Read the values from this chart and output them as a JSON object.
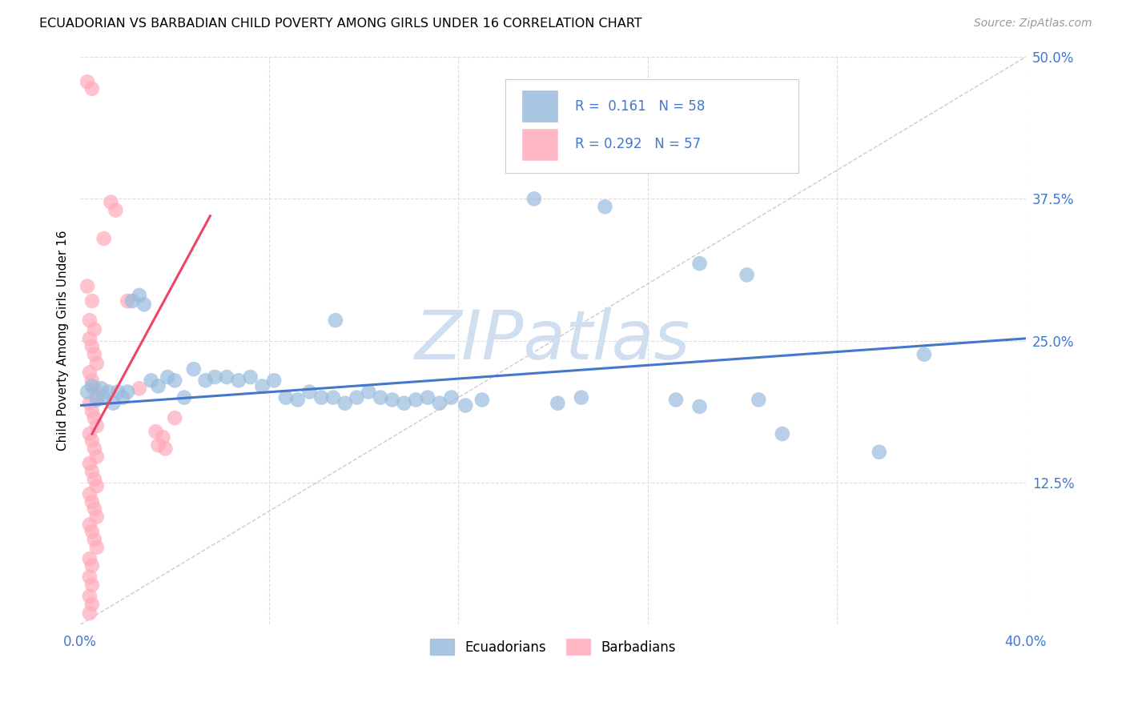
{
  "title": "ECUADORIAN VS BARBADIAN CHILD POVERTY AMONG GIRLS UNDER 16 CORRELATION CHART",
  "source": "Source: ZipAtlas.com",
  "ylabel": "Child Poverty Among Girls Under 16",
  "xlim": [
    0.0,
    0.4
  ],
  "ylim": [
    0.0,
    0.5
  ],
  "blue_color": "#99BBDD",
  "blue_edge_color": "#99BBDD",
  "pink_color": "#FFAABB",
  "pink_edge_color": "#FFAABB",
  "blue_line_color": "#4477CC",
  "pink_line_color": "#EE4466",
  "ref_line_color": "#CCCCCC",
  "grid_color": "#DDDDDD",
  "tick_label_color": "#4477CC",
  "watermark_text": "ZIPatlas",
  "watermark_color": "#D0DFF0",
  "blue_pts": [
    [
      0.003,
      0.205
    ],
    [
      0.005,
      0.215
    ],
    [
      0.007,
      0.2
    ],
    [
      0.009,
      0.21
    ],
    [
      0.01,
      0.195
    ],
    [
      0.012,
      0.21
    ],
    [
      0.014,
      0.198
    ],
    [
      0.016,
      0.205
    ],
    [
      0.018,
      0.2
    ],
    [
      0.02,
      0.21
    ],
    [
      0.022,
      0.285
    ],
    [
      0.025,
      0.29
    ],
    [
      0.027,
      0.285
    ],
    [
      0.03,
      0.215
    ],
    [
      0.033,
      0.21
    ],
    [
      0.036,
      0.22
    ],
    [
      0.04,
      0.215
    ],
    [
      0.043,
      0.2
    ],
    [
      0.048,
      0.225
    ],
    [
      0.052,
      0.21
    ],
    [
      0.055,
      0.22
    ],
    [
      0.06,
      0.22
    ],
    [
      0.065,
      0.215
    ],
    [
      0.07,
      0.22
    ],
    [
      0.075,
      0.21
    ],
    [
      0.08,
      0.215
    ],
    [
      0.085,
      0.2
    ],
    [
      0.09,
      0.195
    ],
    [
      0.095,
      0.205
    ],
    [
      0.1,
      0.2
    ],
    [
      0.105,
      0.2
    ],
    [
      0.11,
      0.195
    ],
    [
      0.115,
      0.2
    ],
    [
      0.12,
      0.205
    ],
    [
      0.125,
      0.2
    ],
    [
      0.13,
      0.2
    ],
    [
      0.135,
      0.195
    ],
    [
      0.14,
      0.198
    ],
    [
      0.145,
      0.2
    ],
    [
      0.105,
      0.27
    ],
    [
      0.15,
      0.195
    ],
    [
      0.155,
      0.2
    ],
    [
      0.162,
      0.195
    ],
    [
      0.17,
      0.2
    ],
    [
      0.19,
      0.375
    ],
    [
      0.2,
      0.195
    ],
    [
      0.21,
      0.2
    ],
    [
      0.22,
      0.37
    ],
    [
      0.25,
      0.2
    ],
    [
      0.26,
      0.195
    ],
    [
      0.285,
      0.2
    ],
    [
      0.295,
      0.17
    ],
    [
      0.335,
      0.155
    ],
    [
      0.355,
      0.24
    ],
    [
      0.26,
      0.32
    ],
    [
      0.28,
      0.31
    ]
  ],
  "pink_pts": [
    [
      0.003,
      0.48
    ],
    [
      0.005,
      0.475
    ],
    [
      0.01,
      0.342
    ],
    [
      0.013,
      0.37
    ],
    [
      0.015,
      0.36
    ],
    [
      0.003,
      0.3
    ],
    [
      0.004,
      0.29
    ],
    [
      0.005,
      0.28
    ],
    [
      0.006,
      0.275
    ],
    [
      0.007,
      0.268
    ],
    [
      0.008,
      0.26
    ],
    [
      0.003,
      0.252
    ],
    [
      0.004,
      0.245
    ],
    [
      0.005,
      0.238
    ],
    [
      0.006,
      0.232
    ],
    [
      0.007,
      0.225
    ],
    [
      0.008,
      0.218
    ],
    [
      0.002,
      0.212
    ],
    [
      0.003,
      0.205
    ],
    [
      0.004,
      0.198
    ],
    [
      0.005,
      0.193
    ],
    [
      0.006,
      0.188
    ],
    [
      0.007,
      0.182
    ],
    [
      0.003,
      0.175
    ],
    [
      0.004,
      0.168
    ],
    [
      0.005,
      0.162
    ],
    [
      0.006,
      0.155
    ],
    [
      0.007,
      0.148
    ],
    [
      0.008,
      0.142
    ],
    [
      0.003,
      0.135
    ],
    [
      0.004,
      0.128
    ],
    [
      0.005,
      0.122
    ],
    [
      0.006,
      0.115
    ],
    [
      0.007,
      0.108
    ],
    [
      0.008,
      0.102
    ],
    [
      0.003,
      0.095
    ],
    [
      0.004,
      0.088
    ],
    [
      0.005,
      0.082
    ],
    [
      0.006,
      0.075
    ],
    [
      0.003,
      0.068
    ],
    [
      0.004,
      0.062
    ],
    [
      0.003,
      0.055
    ],
    [
      0.004,
      0.048
    ],
    [
      0.003,
      0.038
    ],
    [
      0.004,
      0.032
    ],
    [
      0.003,
      0.025
    ],
    [
      0.004,
      0.018
    ],
    [
      0.003,
      0.012
    ],
    [
      0.004,
      0.008
    ],
    [
      0.003,
      0.062
    ],
    [
      0.004,
      0.058
    ],
    [
      0.02,
      0.285
    ],
    [
      0.025,
      0.21
    ],
    [
      0.032,
      0.17
    ],
    [
      0.035,
      0.165
    ],
    [
      0.032,
      0.158
    ],
    [
      0.035,
      0.155
    ],
    [
      0.04,
      0.185
    ]
  ],
  "blue_line": [
    [
      0.0,
      0.193
    ],
    [
      0.4,
      0.252
    ]
  ],
  "pink_line": [
    [
      0.005,
      0.168
    ],
    [
      0.055,
      0.36
    ]
  ]
}
